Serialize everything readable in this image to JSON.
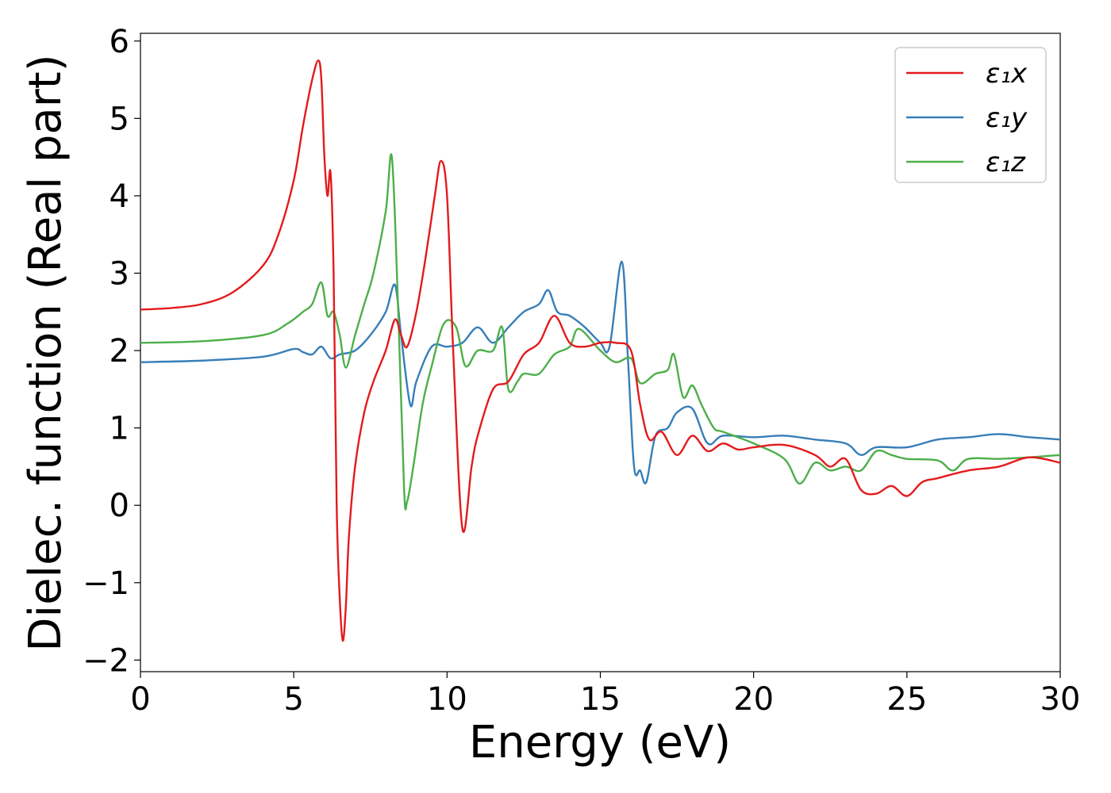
{
  "chart_data": {
    "type": "line",
    "xlabel": "Energy (eV)",
    "ylabel": "Dielec. function (Real part)",
    "xlim": [
      0,
      30
    ],
    "ylim": [
      -2.15,
      6.1
    ],
    "xticks": [
      0,
      5,
      10,
      15,
      20,
      25,
      30
    ],
    "xtick_labels": [
      "0",
      "5",
      "10",
      "15",
      "20",
      "25",
      "30"
    ],
    "yticks": [
      -2,
      -1,
      0,
      1,
      2,
      3,
      4,
      5,
      6
    ],
    "ytick_labels": [
      "−2",
      "−1",
      "0",
      "1",
      "2",
      "3",
      "4",
      "5",
      "6"
    ],
    "grid": false,
    "legend_position": "top-right",
    "series": [
      {
        "name": "ε₁x",
        "color": "#e41a1c",
        "x": [
          0,
          1,
          2,
          3,
          4,
          4.5,
          5,
          5.3,
          5.6,
          5.8,
          5.9,
          6.0,
          6.1,
          6.2,
          6.3,
          6.4,
          6.5,
          6.6,
          6.7,
          6.8,
          7.0,
          7.3,
          7.6,
          8.0,
          8.3,
          8.5,
          8.7,
          9.0,
          9.3,
          9.6,
          9.8,
          10.0,
          10.2,
          10.5,
          10.8,
          11.0,
          11.5,
          12.0,
          12.5,
          13.0,
          13.5,
          14.0,
          14.5,
          15.0,
          15.5,
          16.0,
          16.3,
          16.6,
          17.0,
          17.5,
          18.0,
          18.5,
          19.0,
          19.5,
          20.0,
          21.0,
          22.0,
          22.5,
          23.0,
          23.5,
          24.0,
          24.5,
          25.0,
          25.5,
          26.0,
          27.0,
          28.0,
          29.0,
          30.0
        ],
        "values": [
          2.53,
          2.55,
          2.6,
          2.75,
          3.1,
          3.5,
          4.2,
          4.9,
          5.5,
          5.75,
          5.5,
          4.5,
          4.0,
          4.3,
          3.0,
          0.0,
          -1.2,
          -1.75,
          -1.3,
          -0.4,
          0.5,
          1.2,
          1.6,
          2.0,
          2.4,
          2.2,
          2.05,
          2.5,
          3.2,
          4.0,
          4.45,
          4.0,
          2.0,
          -0.3,
          0.5,
          0.9,
          1.5,
          1.6,
          1.95,
          2.1,
          2.45,
          2.1,
          2.05,
          2.1,
          2.1,
          2.0,
          1.3,
          0.85,
          0.95,
          0.65,
          0.9,
          0.7,
          0.8,
          0.72,
          0.75,
          0.78,
          0.65,
          0.5,
          0.6,
          0.2,
          0.15,
          0.25,
          0.12,
          0.3,
          0.35,
          0.45,
          0.5,
          0.62,
          0.55
        ]
      },
      {
        "name": "ε₁y",
        "color": "#377eb8",
        "x": [
          0,
          2,
          4,
          5,
          5.3,
          5.6,
          5.9,
          6.2,
          6.5,
          7.0,
          7.5,
          8.0,
          8.3,
          8.5,
          8.8,
          9.0,
          9.5,
          10.0,
          10.5,
          11.0,
          11.5,
          12.0,
          12.5,
          13.0,
          13.3,
          13.6,
          14.0,
          14.5,
          15.0,
          15.3,
          15.7,
          15.9,
          16.1,
          16.3,
          16.5,
          16.8,
          17.2,
          17.5,
          18.0,
          18.5,
          19.0,
          20.0,
          21.0,
          22.0,
          23.0,
          23.5,
          24.0,
          25.0,
          26.0,
          27.0,
          28.0,
          29.0,
          30.0
        ],
        "values": [
          1.85,
          1.87,
          1.92,
          2.02,
          1.98,
          1.95,
          2.05,
          1.9,
          1.95,
          2.0,
          2.2,
          2.5,
          2.85,
          2.2,
          1.3,
          1.6,
          2.05,
          2.05,
          2.1,
          2.3,
          2.1,
          2.3,
          2.5,
          2.6,
          2.78,
          2.5,
          2.45,
          2.3,
          2.1,
          2.05,
          3.15,
          1.9,
          0.5,
          0.45,
          0.3,
          0.9,
          1.0,
          1.2,
          1.25,
          0.8,
          0.9,
          0.88,
          0.9,
          0.85,
          0.8,
          0.65,
          0.75,
          0.75,
          0.85,
          0.88,
          0.92,
          0.88,
          0.85
        ]
      },
      {
        "name": "ε₁z",
        "color": "#4daf4a",
        "x": [
          0,
          2,
          4,
          4.8,
          5.3,
          5.6,
          5.9,
          6.1,
          6.3,
          6.5,
          6.7,
          7.0,
          7.3,
          7.6,
          8.0,
          8.2,
          8.4,
          8.6,
          8.7,
          8.9,
          9.2,
          9.5,
          9.9,
          10.3,
          10.6,
          11.0,
          11.5,
          11.8,
          12.0,
          12.3,
          12.5,
          13.0,
          13.5,
          14.0,
          14.3,
          15.0,
          15.5,
          16.0,
          16.3,
          16.8,
          17.2,
          17.4,
          17.7,
          18.0,
          18.3,
          18.7,
          19.0,
          20.0,
          21.0,
          21.5,
          22.0,
          22.5,
          23.0,
          23.5,
          24.0,
          24.5,
          25.0,
          26.0,
          26.5,
          27.0,
          28.0,
          29.0,
          30.0
        ],
        "values": [
          2.1,
          2.12,
          2.2,
          2.35,
          2.5,
          2.6,
          2.88,
          2.45,
          2.5,
          2.2,
          1.78,
          2.2,
          2.6,
          3.0,
          3.8,
          4.5,
          2.6,
          0.2,
          0.05,
          0.5,
          1.3,
          1.8,
          2.35,
          2.3,
          1.8,
          2.0,
          2.0,
          2.3,
          1.5,
          1.6,
          1.7,
          1.7,
          1.95,
          2.05,
          2.28,
          2.0,
          1.85,
          1.9,
          1.58,
          1.7,
          1.75,
          1.95,
          1.4,
          1.55,
          1.3,
          1.0,
          0.95,
          0.8,
          0.6,
          0.28,
          0.55,
          0.45,
          0.5,
          0.45,
          0.7,
          0.65,
          0.6,
          0.58,
          0.45,
          0.6,
          0.6,
          0.62,
          0.65
        ]
      }
    ]
  }
}
